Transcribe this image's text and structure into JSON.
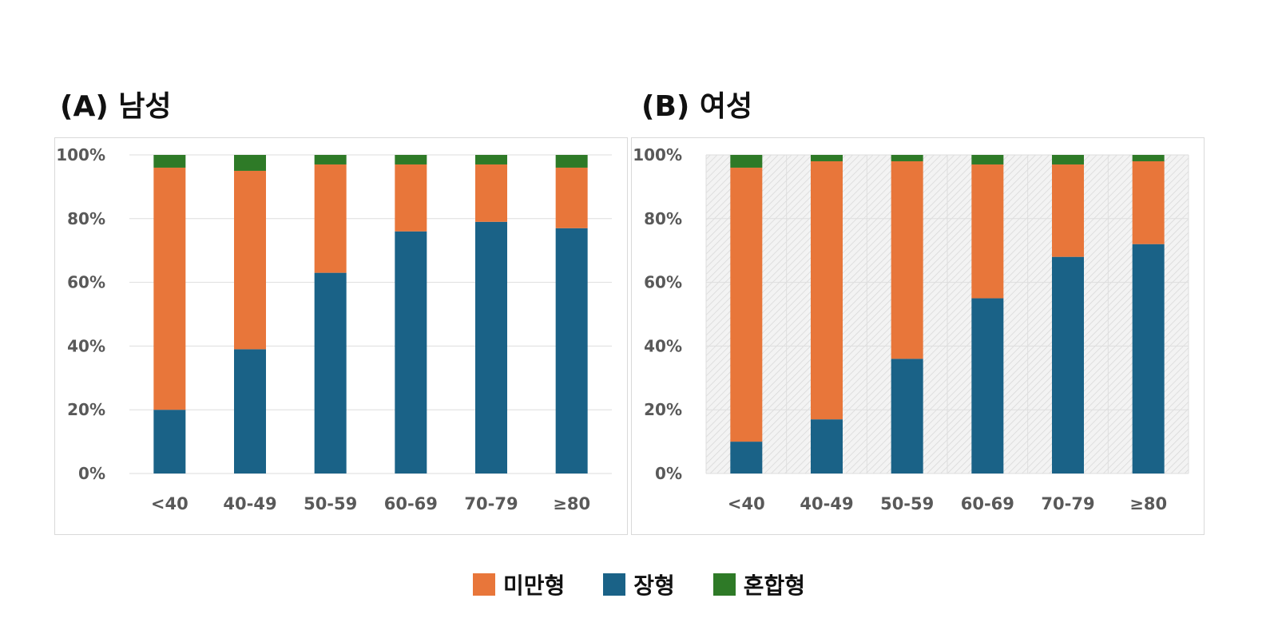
{
  "colors": {
    "mi_man": "#E8763A",
    "jang": "#1A6287",
    "hon_hap": "#2E7A27",
    "grid": "#dedede",
    "tick_text": "#595959"
  },
  "legend": [
    {
      "label": "미만형",
      "color_key": "mi_man"
    },
    {
      "label": "장형",
      "color_key": "jang"
    },
    {
      "label": "혼합형",
      "color_key": "hon_hap"
    }
  ],
  "chart_data": [
    {
      "type": "bar",
      "stacked": true,
      "title": "(A) 남성",
      "categories": [
        "<40",
        "40-49",
        "50-59",
        "60-69",
        "70-79",
        "≥80"
      ],
      "yticks": [
        "0%",
        "20%",
        "40%",
        "60%",
        "80%",
        "100%"
      ],
      "ylim": [
        0,
        100
      ],
      "grid": true,
      "patterned_background": false,
      "series": [
        {
          "name": "장형",
          "color_key": "jang",
          "values": [
            20,
            39,
            63,
            76,
            79,
            77
          ]
        },
        {
          "name": "미만형",
          "color_key": "mi_man",
          "values": [
            76,
            56,
            34,
            21,
            18,
            19
          ]
        },
        {
          "name": "혼합형",
          "color_key": "hon_hap",
          "values": [
            4,
            5,
            3,
            3,
            3,
            4
          ]
        }
      ]
    },
    {
      "type": "bar",
      "stacked": true,
      "title": "(B) 여성",
      "categories": [
        "<40",
        "40-49",
        "50-59",
        "60-69",
        "70-79",
        "≥80"
      ],
      "yticks": [
        "0%",
        "20%",
        "40%",
        "60%",
        "80%",
        "100%"
      ],
      "ylim": [
        0,
        100
      ],
      "grid": true,
      "patterned_background": true,
      "series": [
        {
          "name": "장형",
          "color_key": "jang",
          "values": [
            10,
            17,
            36,
            55,
            68,
            72
          ]
        },
        {
          "name": "미만형",
          "color_key": "mi_man",
          "values": [
            86,
            81,
            62,
            42,
            29,
            26
          ]
        },
        {
          "name": "혼합형",
          "color_key": "hon_hap",
          "values": [
            4,
            2,
            2,
            3,
            3,
            2
          ]
        }
      ]
    }
  ]
}
